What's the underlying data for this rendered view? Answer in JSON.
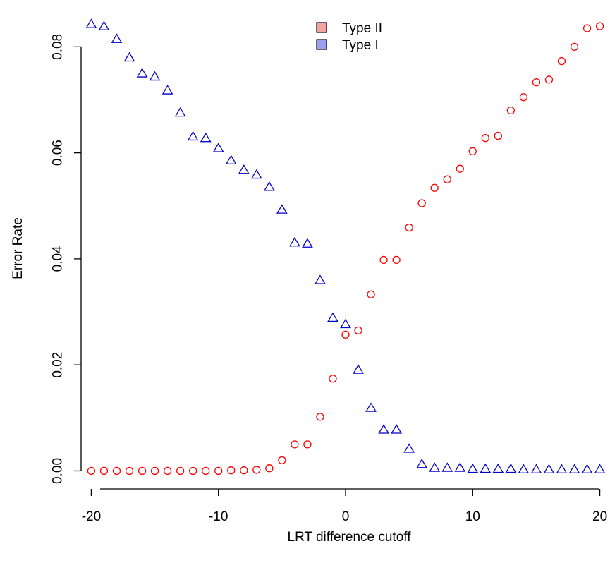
{
  "chart_data": {
    "type": "scatter",
    "xlabel": "LRT difference cutoff",
    "ylabel": "Error Rate",
    "xlim": [
      -20.8,
      20.8
    ],
    "ylim": [
      -0.0034,
      0.0875
    ],
    "x_ticks": [
      -20,
      -10,
      0,
      10,
      20
    ],
    "x_tick_labels": [
      "-20",
      "-10",
      "0",
      "10",
      "20"
    ],
    "y_ticks": [
      0.0,
      0.02,
      0.04,
      0.06,
      0.08
    ],
    "y_tick_labels": [
      "0.00",
      "0.02",
      "0.04",
      "0.06",
      "0.08"
    ],
    "legend_position": "top-center",
    "series": [
      {
        "name": "Type II",
        "marker": "circle",
        "color": "#ff0000",
        "legend_fill": "#f4a3a3",
        "x": [
          -20,
          -19,
          -18,
          -17,
          -16,
          -15,
          -14,
          -13,
          -12,
          -11,
          -10,
          -9,
          -8,
          -7,
          -6,
          -5,
          -4,
          -3,
          -2,
          -1,
          0,
          1,
          2,
          3,
          4,
          5,
          6,
          7,
          8,
          9,
          10,
          11,
          12,
          13,
          14,
          15,
          16,
          17,
          18,
          19,
          20
        ],
        "values": [
          0,
          0,
          0,
          0,
          0,
          0,
          0,
          0,
          0,
          0,
          0,
          0.0001,
          0.0001,
          0.0002,
          0.0005,
          0.002,
          0.005,
          0.005,
          0.0102,
          0.0174,
          0.0257,
          0.0265,
          0.0333,
          0.0398,
          0.0398,
          0.0459,
          0.0505,
          0.0534,
          0.055,
          0.057,
          0.0603,
          0.0628,
          0.0632,
          0.068,
          0.0705,
          0.0733,
          0.0738,
          0.0773,
          0.08,
          0.0835,
          0.0839
        ]
      },
      {
        "name": "Type I",
        "marker": "triangle",
        "color": "#0000cc",
        "legend_fill": "#9f9ff0",
        "x": [
          -20,
          -19,
          -18,
          -17,
          -16,
          -15,
          -14,
          -13,
          -12,
          -11,
          -10,
          -9,
          -8,
          -7,
          -6,
          -5,
          -4,
          -3,
          -2,
          -1,
          0,
          1,
          2,
          3,
          4,
          5,
          6,
          7,
          8,
          9,
          10,
          11,
          12,
          13,
          14,
          15,
          16,
          17,
          18,
          19,
          20
        ],
        "values": [
          0.0842,
          0.0838,
          0.0814,
          0.0779,
          0.0749,
          0.0743,
          0.0717,
          0.0675,
          0.063,
          0.0627,
          0.0608,
          0.0585,
          0.0567,
          0.0558,
          0.0535,
          0.0492,
          0.043,
          0.0428,
          0.0359,
          0.0288,
          0.0276,
          0.019,
          0.0118,
          0.0077,
          0.0077,
          0.0041,
          0.0012,
          0.0005,
          0.0005,
          0.0005,
          0.0003,
          0.0003,
          0.0003,
          0.0003,
          0.0002,
          0.0002,
          0.0002,
          0.0002,
          0.0002,
          0.0002,
          0.0002
        ]
      }
    ]
  }
}
